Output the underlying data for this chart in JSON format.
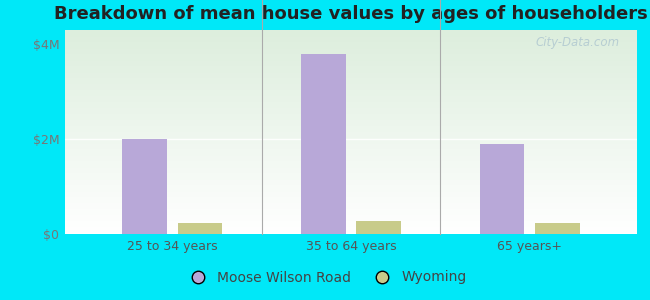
{
  "title": "Breakdown of mean house values by ages of householders",
  "categories": [
    "25 to 34 years",
    "35 to 64 years",
    "65 years+"
  ],
  "moose_wilson_values": [
    2000000,
    3800000,
    1900000
  ],
  "wyoming_values": [
    230000,
    270000,
    240000
  ],
  "bar_color_moose": "#b8a8d8",
  "bar_color_wyoming": "#c8cb8a",
  "yticks": [
    0,
    2000000,
    4000000
  ],
  "ytick_labels": [
    "$0",
    "$2M",
    "$4M"
  ],
  "ylim": [
    0,
    4300000
  ],
  "background_outer": "#00e8f8",
  "legend_label_moose": "Moose Wilson Road",
  "legend_label_wyoming": "Wyoming",
  "watermark": "City-Data.com",
  "title_fontsize": 13,
  "tick_fontsize": 9,
  "legend_fontsize": 10
}
